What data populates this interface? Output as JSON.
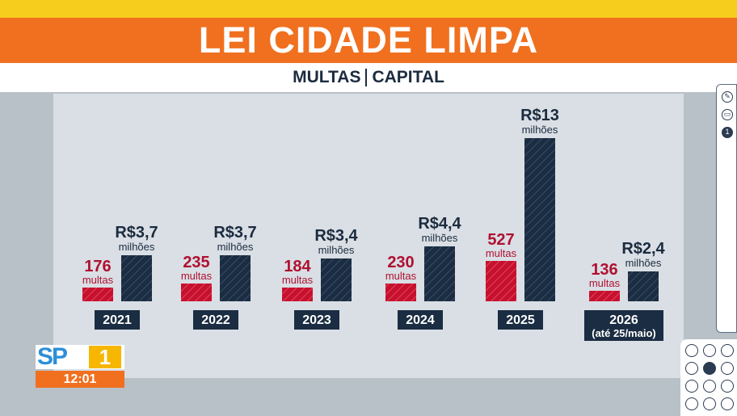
{
  "header": {
    "title": "LEI CIDADE LIMPA",
    "subtitle_left": "MULTAS",
    "subtitle_right": "CAPITAL"
  },
  "logo": {
    "text": "SP",
    "number": "1",
    "time": "12:01"
  },
  "colors": {
    "fines_bar": "#c8102e",
    "value_bar": "#1b2d42",
    "label_fines": "#b01030",
    "label_value": "#1c2b3e",
    "banner": "#f0701f",
    "accent_yellow": "#f6cd1d"
  },
  "chart_data": {
    "type": "bar",
    "categories": [
      "2021",
      "2022",
      "2023",
      "2024",
      "2025",
      "2026"
    ],
    "category_notes": [
      "",
      "",
      "",
      "",
      "",
      "(até 25/maio)"
    ],
    "series": [
      {
        "values": [
          176,
          235,
          184,
          230,
          527,
          136
        ],
        "labels": [
          "176",
          "235",
          "184",
          "230",
          "527",
          "136"
        ],
        "unit": "multas"
      },
      {
        "values": [
          3.7,
          3.7,
          3.4,
          4.4,
          13,
          2.4
        ],
        "labels": [
          "R$3,7",
          "R$3,7",
          "R$3,4",
          "R$4,4",
          "R$13",
          "R$2,4"
        ],
        "unit": "milhões"
      }
    ],
    "grid": false,
    "legend": "none"
  }
}
